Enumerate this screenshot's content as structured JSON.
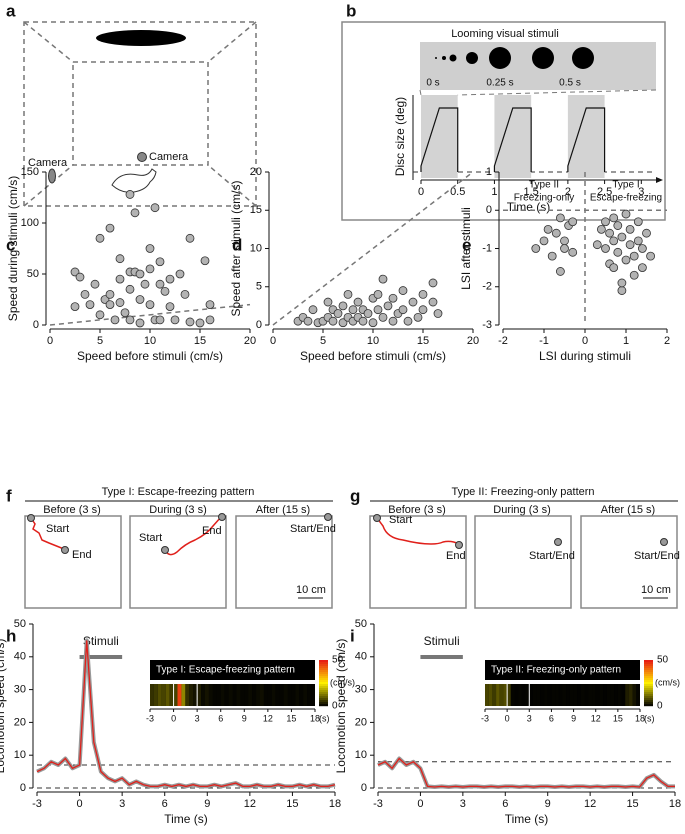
{
  "diagram": {
    "a": {
      "label": "a",
      "cameras": [
        "Camera",
        "Camera"
      ]
    },
    "f": {
      "label": "f",
      "title": "Type I: Escape-freezing pattern",
      "phases": [
        "Before (3 s)",
        "During (3 s)",
        "After (15 s)"
      ],
      "annotations": [
        "Start",
        "End",
        "Start",
        "End",
        "Start/End"
      ],
      "scale": "10 cm"
    },
    "g": {
      "label": "g",
      "title": "Type II: Freezing-only pattern",
      "phases": [
        "Before (3 s)",
        "During (3 s)",
        "After (15 s)"
      ],
      "annotations": [
        "Start",
        "End",
        "Start/End",
        "Start/End"
      ],
      "scale": "10 cm"
    }
  },
  "chart_data": [
    {
      "type": "timeline",
      "label": "b",
      "title": "Looming visual stimuli",
      "inset_labels": [
        "0 s",
        "0.25 s",
        "0.5 s"
      ],
      "ylabel": "Disc size (deg)",
      "xlabel": "Time (s)",
      "xlim": [
        0,
        3.2
      ],
      "xticks": [
        0,
        0.5,
        1.0,
        1.5,
        2.0,
        2.5,
        3.0
      ],
      "stimulus_windows": [
        [
          0,
          0.5
        ],
        [
          1,
          1.5
        ],
        [
          2,
          2.5
        ]
      ]
    },
    {
      "type": "scatter",
      "label": "c",
      "xlabel": "Speed before stimuli (cm/s)",
      "ylabel": "Speed during stimuli (cm/s)",
      "xlim": [
        0,
        20
      ],
      "ylim": [
        0,
        150
      ],
      "xticks": [
        0,
        5,
        10,
        15,
        20
      ],
      "yticks": [
        0,
        50,
        100,
        150
      ],
      "identity_line": true,
      "color": "#b3b3b3",
      "x": [
        2.5,
        3,
        2.5,
        3.5,
        4,
        4.5,
        5,
        5,
        5.5,
        6,
        6,
        6,
        6.5,
        7,
        7,
        7,
        7.5,
        8,
        8,
        8,
        8,
        8.5,
        8.5,
        9,
        9,
        9,
        9.5,
        10,
        10,
        10,
        10.5,
        10.5,
        11,
        11,
        11,
        11.5,
        12,
        12,
        12.5,
        13,
        13.5,
        14,
        14,
        15,
        15.5,
        16,
        16
      ],
      "values": [
        52,
        47,
        18,
        30,
        20,
        40,
        85,
        10,
        25,
        95,
        30,
        20,
        5,
        65,
        45,
        22,
        12,
        128,
        52,
        35,
        5,
        110,
        52,
        50,
        25,
        2,
        40,
        75,
        55,
        20,
        115,
        5,
        62,
        40,
        5,
        33,
        45,
        18,
        5,
        50,
        30,
        85,
        3,
        2,
        63,
        20,
        5
      ]
    },
    {
      "type": "scatter",
      "label": "d",
      "xlabel": "Speed before stimuli (cm/s)",
      "ylabel": "Speed after stimuli (cm/s)",
      "xlim": [
        0,
        20
      ],
      "ylim": [
        0,
        20
      ],
      "xticks": [
        0,
        5,
        10,
        15,
        20
      ],
      "yticks": [
        0,
        5,
        10,
        15,
        20
      ],
      "identity_line": true,
      "color": "#b3b3b3",
      "x": [
        2.5,
        3,
        3.5,
        4,
        4.5,
        5,
        5.5,
        5.5,
        6,
        6,
        6.5,
        7,
        7,
        7.5,
        7.5,
        8,
        8,
        8.5,
        8.5,
        9,
        9,
        9.5,
        10,
        10,
        10.5,
        10.5,
        11,
        11,
        11.5,
        12,
        12,
        12.5,
        13,
        13,
        13.5,
        14,
        14.5,
        15,
        15,
        16,
        16,
        16.5
      ],
      "values": [
        0.5,
        1,
        0.5,
        2,
        0.3,
        0.5,
        1,
        3,
        0.5,
        2,
        1.5,
        0.3,
        2.5,
        1,
        4,
        0.5,
        2,
        3,
        1,
        0.5,
        2,
        1.5,
        3.5,
        0.3,
        4,
        2,
        1,
        6,
        2.5,
        0.5,
        3.5,
        1.5,
        4.5,
        2,
        0.5,
        3,
        1,
        4,
        2,
        5.5,
        3,
        1.5
      ]
    },
    {
      "type": "scatter",
      "label": "e",
      "xlabel": "LSI during stimuli",
      "ylabel": "LSI after stimuli",
      "xlim": [
        -2,
        2
      ],
      "ylim": [
        -3,
        1
      ],
      "xticks": [
        -2,
        -1,
        0,
        1,
        2
      ],
      "yticks": [
        -3,
        -2,
        -1,
        0,
        1
      ],
      "crosshair": true,
      "color": "#b3b3b3",
      "annotations": [
        [
          "Type II",
          "Freezing-only"
        ],
        [
          "Type I",
          "Escape-freezing"
        ]
      ],
      "x": [
        -1.2,
        -1,
        -0.9,
        -0.8,
        -0.7,
        -0.6,
        -0.6,
        -0.5,
        -0.5,
        -0.4,
        -0.3,
        -0.3,
        0.3,
        0.4,
        0.5,
        0.5,
        0.6,
        0.6,
        0.7,
        0.7,
        0.8,
        0.8,
        0.9,
        0.9,
        1,
        1,
        1.1,
        1.1,
        1.2,
        1.2,
        1.3,
        1.3,
        1.4,
        1.4,
        1.5,
        1.6,
        0.7,
        0.9
      ],
      "values": [
        -1,
        -0.8,
        -0.5,
        -1.2,
        -0.6,
        -1.6,
        -0.2,
        -0.8,
        -1,
        -0.4,
        -0.3,
        -1.1,
        -0.9,
        -0.5,
        -1,
        -0.3,
        -1.4,
        -0.6,
        -0.2,
        -0.8,
        -1.1,
        -0.4,
        -2.1,
        -0.7,
        -1.3,
        -0.1,
        -0.9,
        -0.5,
        -1.7,
        -1.2,
        -0.3,
        -0.8,
        -1.5,
        -1,
        -0.6,
        -1.2,
        -1.5,
        -1.9
      ]
    },
    {
      "type": "line",
      "label": "h",
      "xlabel": "Time (s)",
      "ylabel": "Locomotion speed (cm/s)",
      "color": "#e0201b",
      "xlim": [
        -3,
        18
      ],
      "ylim": [
        0,
        50
      ],
      "xticks": [
        -3,
        0,
        3,
        6,
        9,
        12,
        15,
        18
      ],
      "yticks": [
        0,
        10,
        20,
        30,
        40,
        50
      ],
      "stimulus": [
        0,
        3
      ],
      "stimulus_label": "Stimuli",
      "hlines": [
        0,
        7
      ],
      "inset_title": "Type I: Escape-freezing pattern",
      "inset_xunit": "(s)",
      "clim": [
        0,
        50
      ],
      "cbar_ticks": [
        50,
        0
      ],
      "cbar_label": "(cm/s)",
      "x": [
        -3,
        -2.5,
        -2,
        -1.5,
        -1,
        -0.5,
        0,
        0.5,
        1,
        1.5,
        2,
        2.5,
        3,
        3.5,
        4,
        4.5,
        5,
        5.5,
        6,
        6.5,
        7,
        7.5,
        8,
        8.5,
        9,
        9.5,
        10,
        10.5,
        11,
        11.5,
        12,
        12.5,
        13,
        13.5,
        14,
        14.5,
        15,
        15.5,
        16,
        16.5,
        17,
        17.5,
        18
      ],
      "values": [
        5,
        6,
        8,
        7,
        9,
        6,
        7,
        45,
        14,
        5,
        3,
        2,
        3,
        1,
        2,
        1,
        0.5,
        0.5,
        1,
        0.5,
        1,
        0.5,
        1,
        0.5,
        0.5,
        1,
        0.5,
        1,
        1.5,
        0.5,
        0.5,
        1,
        0.5,
        0.5,
        1,
        0.5,
        0.5,
        1,
        0.5,
        1,
        0.5,
        0.5,
        1
      ]
    },
    {
      "type": "line",
      "label": "i",
      "xlabel": "Time (s)",
      "ylabel": "Locomotion speed (cm/s)",
      "color": "#e0201b",
      "xlim": [
        -3,
        18
      ],
      "ylim": [
        0,
        50
      ],
      "xticks": [
        -3,
        0,
        3,
        6,
        9,
        12,
        15,
        18
      ],
      "yticks": [
        0,
        10,
        20,
        30,
        40,
        50
      ],
      "stimulus": [
        0,
        3
      ],
      "stimulus_label": "Stimuli",
      "hlines": [
        0,
        8
      ],
      "inset_title": "Type II: Freezing-only pattern",
      "inset_xunit": "(s)",
      "clim": [
        0,
        50
      ],
      "cbar_ticks": [
        50,
        0
      ],
      "cbar_label": "(cm/s)",
      "x": [
        -3,
        -2.5,
        -2,
        -1.5,
        -1,
        -0.5,
        0,
        0.5,
        1,
        1.5,
        2,
        2.5,
        3,
        3.5,
        4,
        4.5,
        5,
        5.5,
        6,
        6.5,
        7,
        7.5,
        8,
        8.5,
        9,
        9.5,
        10,
        10.5,
        11,
        11.5,
        12,
        12.5,
        13,
        13.5,
        14,
        14.5,
        15,
        15.5,
        16,
        16.5,
        17,
        17.5,
        18
      ],
      "values": [
        7,
        8,
        6,
        9,
        7,
        8,
        6,
        0.5,
        0.3,
        0.5,
        0.3,
        0.5,
        0.3,
        0.5,
        0.5,
        0.3,
        0.5,
        0.3,
        0.5,
        0.5,
        0.3,
        0.5,
        0.3,
        0.5,
        0.5,
        0.3,
        0.5,
        0.3,
        0.5,
        0.5,
        0.3,
        0.5,
        0.3,
        0.5,
        0.5,
        0.3,
        0.5,
        0.3,
        3,
        4,
        2,
        0.5,
        0.5
      ]
    }
  ]
}
